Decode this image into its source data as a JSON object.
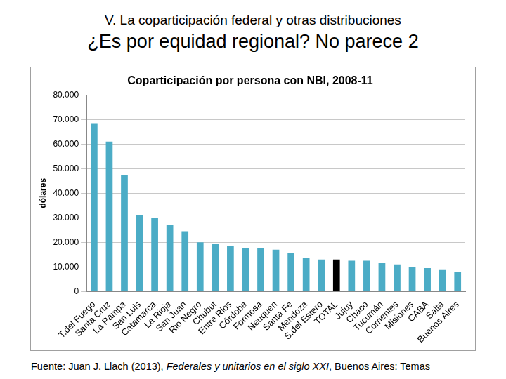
{
  "header": {
    "section": "V. La coparticipación federal y otras distribuciones",
    "title": "¿Es por equidad regional? No parece 2"
  },
  "source": [
    "Fuente: Juan J. Llach (2013), ",
    "Federales y unitarios en el siglo XXI",
    ", Buenos Aires: Temas"
  ],
  "chart_data": {
    "type": "bar",
    "title": "Coparticipación por persona con NBI, 2008-11",
    "y_label": "dólares",
    "categories": [
      "T.del Fuego",
      "Santa Cruz",
      "La Pampa",
      "San Luis",
      "Catamarca",
      "La Rioja",
      "San Juan",
      "Rio Negro",
      "Chubut",
      "Entre Rios",
      "Córdoba",
      "Formosa",
      "Neuquen",
      "Santa Fe",
      "Mendoza",
      "S.del Estero",
      "TOTAL",
      "Jujuy",
      "Chaco",
      "Tucumán",
      "Corrientes",
      "Misiones",
      "CABA",
      "Salta",
      "Buenos Aires"
    ],
    "values": [
      68500,
      61000,
      47500,
      31000,
      30000,
      27000,
      24500,
      20000,
      19500,
      18500,
      17500,
      17500,
      17000,
      15500,
      13500,
      13000,
      13000,
      12500,
      12500,
      11500,
      11000,
      10000,
      9500,
      9000,
      8000
    ],
    "colors": [
      "#4bacc6",
      "#4bacc6",
      "#4bacc6",
      "#4bacc6",
      "#4bacc6",
      "#4bacc6",
      "#4bacc6",
      "#4bacc6",
      "#4bacc6",
      "#4bacc6",
      "#4bacc6",
      "#4bacc6",
      "#4bacc6",
      "#4bacc6",
      "#4bacc6",
      "#4bacc6",
      "#000000",
      "#4bacc6",
      "#4bacc6",
      "#4bacc6",
      "#4bacc6",
      "#4bacc6",
      "#4bacc6",
      "#4bacc6",
      "#4bacc6"
    ],
    "ylim": [
      0,
      80000
    ],
    "yticks": [
      0,
      {
        "value": 10000,
        "label": "10.000"
      },
      {
        "value": 20000,
        "label": "20.000"
      },
      {
        "value": 30000,
        "label": "30.000"
      },
      {
        "value": 40000,
        "label": "40.000"
      },
      {
        "value": 50000,
        "label": "50.000"
      },
      {
        "value": 60000,
        "label": "60.000"
      },
      {
        "value": 70000,
        "label": "70.000"
      },
      {
        "value": 80000,
        "label": "80.000"
      }
    ],
    "grid": true
  }
}
